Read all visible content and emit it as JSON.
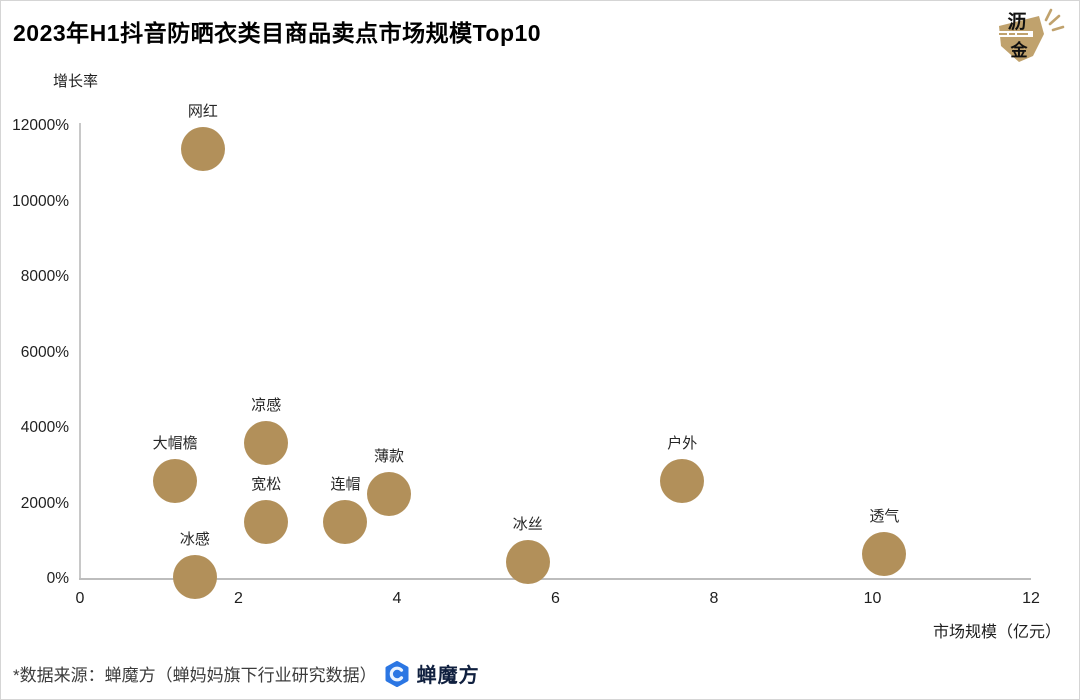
{
  "header": {
    "title": "2023年H1抖音防晒衣类目商品卖点市场规模Top10",
    "logo": {
      "char_top": "沥",
      "char_bottom": "金",
      "color": "#C0A26D"
    }
  },
  "chart_data": {
    "type": "scatter",
    "title": "2023年H1抖音防晒衣类目商品卖点市场规模Top10",
    "xlabel": "市场规模（亿元）",
    "ylabel": "增长率",
    "xlim": [
      0,
      12
    ],
    "ylim": [
      0,
      12000
    ],
    "grid": false,
    "legend": "none",
    "bubble_color": "#B2905A",
    "bubble_radius_px": 22,
    "x_ticks": [
      {
        "v": 0,
        "label": "0"
      },
      {
        "v": 2,
        "label": "2"
      },
      {
        "v": 4,
        "label": "4"
      },
      {
        "v": 6,
        "label": "6"
      },
      {
        "v": 8,
        "label": "8"
      },
      {
        "v": 10,
        "label": "10"
      },
      {
        "v": 12,
        "label": "12"
      }
    ],
    "y_ticks": [
      {
        "v": 0,
        "label": "0%"
      },
      {
        "v": 2000,
        "label": "2000%"
      },
      {
        "v": 4000,
        "label": "4000%"
      },
      {
        "v": 6000,
        "label": "6000%"
      },
      {
        "v": 8000,
        "label": "8000%"
      },
      {
        "v": 10000,
        "label": "10000%"
      },
      {
        "v": 12000,
        "label": "12000%"
      }
    ],
    "points": [
      {
        "label": "网红",
        "market_scale": 1.55,
        "growth_pct": 11400
      },
      {
        "label": "大帽檐",
        "market_scale": 1.2,
        "growth_pct": 2600
      },
      {
        "label": "凉感",
        "market_scale": 2.35,
        "growth_pct": 3600
      },
      {
        "label": "宽松",
        "market_scale": 2.35,
        "growth_pct": 1500
      },
      {
        "label": "冰感",
        "market_scale": 1.45,
        "growth_pct": 50
      },
      {
        "label": "连帽",
        "market_scale": 3.35,
        "growth_pct": 1500
      },
      {
        "label": "薄款",
        "market_scale": 3.9,
        "growth_pct": 2250
      },
      {
        "label": "冰丝",
        "market_scale": 5.65,
        "growth_pct": 450
      },
      {
        "label": "户外",
        "market_scale": 7.6,
        "growth_pct": 2600
      },
      {
        "label": "透气",
        "market_scale": 10.15,
        "growth_pct": 650
      }
    ]
  },
  "footer": {
    "source_text": "*数据来源：蝉魔方（蝉妈妈旗下行业研究数据）",
    "brand_name": "蝉魔方",
    "brand_icon_color": "#2B76E3"
  }
}
